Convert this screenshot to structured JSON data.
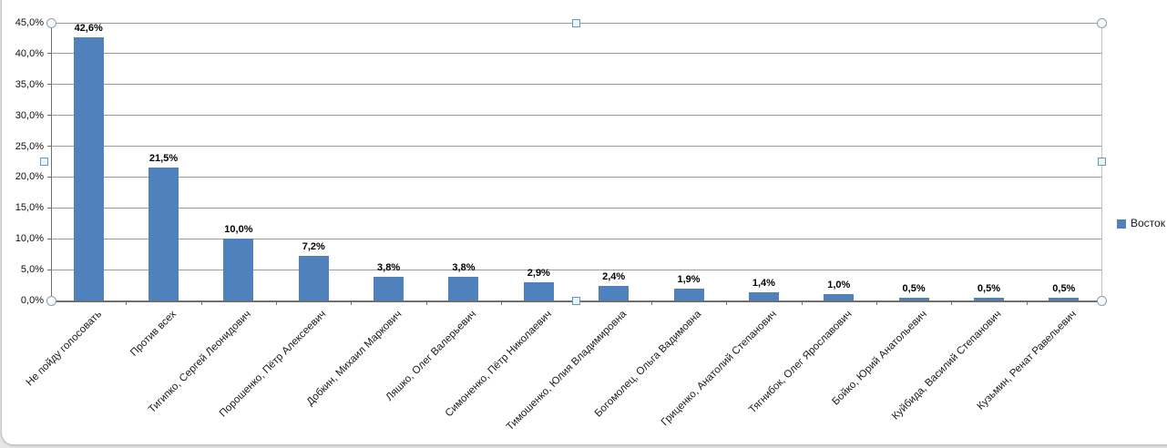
{
  "chart_data": {
    "type": "bar",
    "title": "",
    "xlabel": "",
    "ylabel": "",
    "ylim": [
      0,
      45
    ],
    "y_tick_step": 5,
    "y_tick_labels": [
      "0,0%",
      "5,0%",
      "10,0%",
      "15,0%",
      "20,0%",
      "25,0%",
      "30,0%",
      "35,0%",
      "40,0%",
      "45,0%"
    ],
    "grid": true,
    "legend_position": "right",
    "categories": [
      "Не пойду голосовать",
      "Против всех",
      "Тигипко, Сергей Леонидович",
      "Порошенко, Пётр Алексеевич",
      "Добкин, Михаил Маркович",
      "Ляшко, Олег Валерьевич",
      "Симоненко, Пётр Николаевич",
      "Тимошенко, Юлия Владимировна",
      "Богомолец, Ольга Вадимовна",
      "Гриценко, Анатолий Степанович",
      "Тягнибок, Олег Ярославович",
      "Бойко, Юрий Анатольевич",
      "Куйбида, Василий Степанович",
      "Кузьмин, Ренат Равельевич"
    ],
    "series": [
      {
        "name": "Восток",
        "values": [
          42.6,
          21.5,
          10.0,
          7.2,
          3.8,
          3.8,
          2.9,
          2.4,
          1.9,
          1.4,
          1.0,
          0.5,
          0.5,
          0.5
        ]
      }
    ],
    "data_labels": [
      "42,6%",
      "21,5%",
      "10,0%",
      "7,2%",
      "3,8%",
      "3,8%",
      "2,9%",
      "2,4%",
      "1,9%",
      "1,4%",
      "1,0%",
      "0,5%",
      "0,5%",
      "0,5%"
    ],
    "colors": {
      "bar": "#4f81bd",
      "gridline": "#9b9b9b",
      "axis": "#6f6f6f",
      "plot_border": "#c2c2c2",
      "label_text": "#000000",
      "handle_fill": "#e9f5f9",
      "handle_border": "#8aa0b4",
      "chart_background": "#ffffff"
    }
  }
}
